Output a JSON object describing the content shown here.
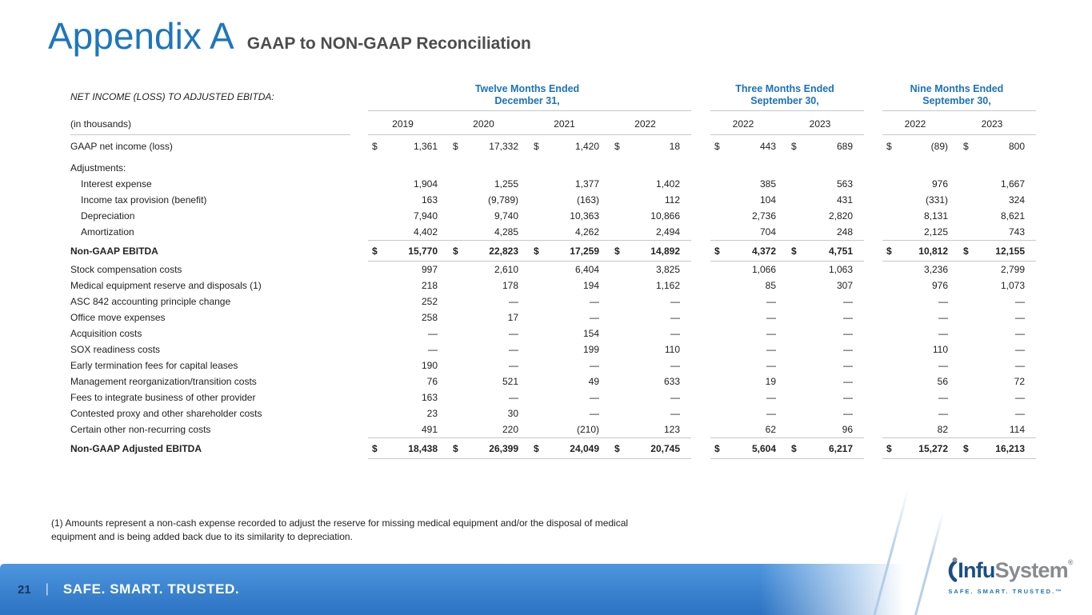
{
  "slide": {
    "title": "Appendix A",
    "subtitle": "GAAP to NON-GAAP Reconciliation"
  },
  "table": {
    "section_label": "NET INCOME (LOSS) TO ADJUSTED EBITDA:",
    "units_label": "(in thousands)",
    "currency_symbol": "$",
    "column_groups": [
      {
        "title": "Twelve Months Ended",
        "subtitle": "December 31,",
        "years": [
          "2019",
          "2020",
          "2021",
          "2022"
        ]
      },
      {
        "title": "Three Months Ended",
        "subtitle": "September 30,",
        "years": [
          "2022",
          "2023"
        ]
      },
      {
        "title": "Nine Months Ended",
        "subtitle": "September 30,",
        "years": [
          "2022",
          "2023"
        ]
      }
    ],
    "rows": [
      {
        "label": "GAAP net income (loss)",
        "indent": 0,
        "style": "dollar",
        "values": [
          "1,361",
          "17,332",
          "1,420",
          "18",
          "443",
          "689",
          "(89)",
          "800"
        ]
      },
      {
        "label": "Adjustments:",
        "indent": 0,
        "style": "plain",
        "values": null
      },
      {
        "label": "Interest expense",
        "indent": 1,
        "style": "plain",
        "values": [
          "1,904",
          "1,255",
          "1,377",
          "1,402",
          "385",
          "563",
          "976",
          "1,667"
        ]
      },
      {
        "label": "Income tax provision (benefit)",
        "indent": 1,
        "style": "plain",
        "values": [
          "163",
          "(9,789)",
          "(163)",
          "112",
          "104",
          "431",
          "(331)",
          "324"
        ]
      },
      {
        "label": "Depreciation",
        "indent": 1,
        "style": "plain",
        "values": [
          "7,940",
          "9,740",
          "10,363",
          "10,866",
          "2,736",
          "2,820",
          "8,131",
          "8,621"
        ]
      },
      {
        "label": "Amortization",
        "indent": 1,
        "style": "plain",
        "values": [
          "4,402",
          "4,285",
          "4,262",
          "2,494",
          "704",
          "248",
          "2,125",
          "743"
        ]
      },
      {
        "label": "Non-GAAP EBITDA",
        "indent": 0,
        "style": "total",
        "values": [
          "15,770",
          "22,823",
          "17,259",
          "14,892",
          "4,372",
          "4,751",
          "10,812",
          "12,155"
        ]
      },
      {
        "label": "Stock compensation costs",
        "indent": 0,
        "style": "plain",
        "values": [
          "997",
          "2,610",
          "6,404",
          "3,825",
          "1,066",
          "1,063",
          "3,236",
          "2,799"
        ]
      },
      {
        "label": "Medical equipment reserve and disposals (1)",
        "indent": 0,
        "style": "plain",
        "values": [
          "218",
          "178",
          "194",
          "1,162",
          "85",
          "307",
          "976",
          "1,073"
        ]
      },
      {
        "label": "ASC 842 accounting principle change",
        "indent": 0,
        "style": "plain",
        "values": [
          "252",
          "—",
          "—",
          "—",
          "—",
          "—",
          "—",
          "—"
        ]
      },
      {
        "label": "Office move expenses",
        "indent": 0,
        "style": "plain",
        "values": [
          "258",
          "17",
          "—",
          "—",
          "—",
          "—",
          "—",
          "—"
        ]
      },
      {
        "label": "Acquisition costs",
        "indent": 0,
        "style": "plain",
        "values": [
          "—",
          "—",
          "154",
          "—",
          "—",
          "—",
          "—",
          "—"
        ]
      },
      {
        "label": "SOX readiness costs",
        "indent": 0,
        "style": "plain",
        "values": [
          "—",
          "—",
          "199",
          "110",
          "—",
          "—",
          "110",
          "—"
        ]
      },
      {
        "label": "Early termination fees for capital leases",
        "indent": 0,
        "style": "plain",
        "values": [
          "190",
          "—",
          "—",
          "—",
          "—",
          "—",
          "—",
          "—"
        ]
      },
      {
        "label": "Management reorganization/transition costs",
        "indent": 0,
        "style": "plain",
        "values": [
          "76",
          "521",
          "49",
          "633",
          "19",
          "—",
          "56",
          "72"
        ]
      },
      {
        "label": "Fees to integrate business of other provider",
        "indent": 0,
        "style": "plain",
        "values": [
          "163",
          "—",
          "—",
          "—",
          "—",
          "—",
          "—",
          "—"
        ]
      },
      {
        "label": "Contested proxy and other shareholder costs",
        "indent": 0,
        "style": "plain",
        "values": [
          "23",
          "30",
          "—",
          "—",
          "—",
          "—",
          "—",
          "—"
        ]
      },
      {
        "label": "Certain other non-recurring costs",
        "indent": 0,
        "style": "plain",
        "values": [
          "491",
          "220",
          "(210)",
          "123",
          "62",
          "96",
          "82",
          "114"
        ]
      },
      {
        "label": "Non-GAAP Adjusted EBITDA",
        "indent": 0,
        "style": "total",
        "values": [
          "18,438",
          "26,399",
          "24,049",
          "20,745",
          "5,604",
          "6,217",
          "15,272",
          "16,213"
        ]
      }
    ]
  },
  "footnote": "(1) Amounts represent a non-cash expense recorded to adjust the reserve for missing medical equipment and/or the disposal of medical equipment and is being added back due to its similarity to depreciation.",
  "footer": {
    "page_number": "21",
    "divider": "|",
    "tagline": "SAFE. SMART. TRUSTED."
  },
  "logo": {
    "name_part1": "Infu",
    "name_part2": "System",
    "registered_mark": "®",
    "tagline": "SAFE. SMART. TRUSTED.™"
  },
  "colors": {
    "title_blue": "#1E76BD",
    "header_blue": "#1B72BC",
    "subtitle_gray": "#4D4D4D",
    "text_dark": "#222222",
    "rule_gray": "#C3C8CD",
    "footer_bar_top": "#4E96DE",
    "footer_bar_bottom": "#2B72C2",
    "page_number_navy": "#17375E",
    "logo_navy": "#1A4E84",
    "logo_gray": "#898B8E",
    "stripe_blue": "#A9C7E6"
  }
}
